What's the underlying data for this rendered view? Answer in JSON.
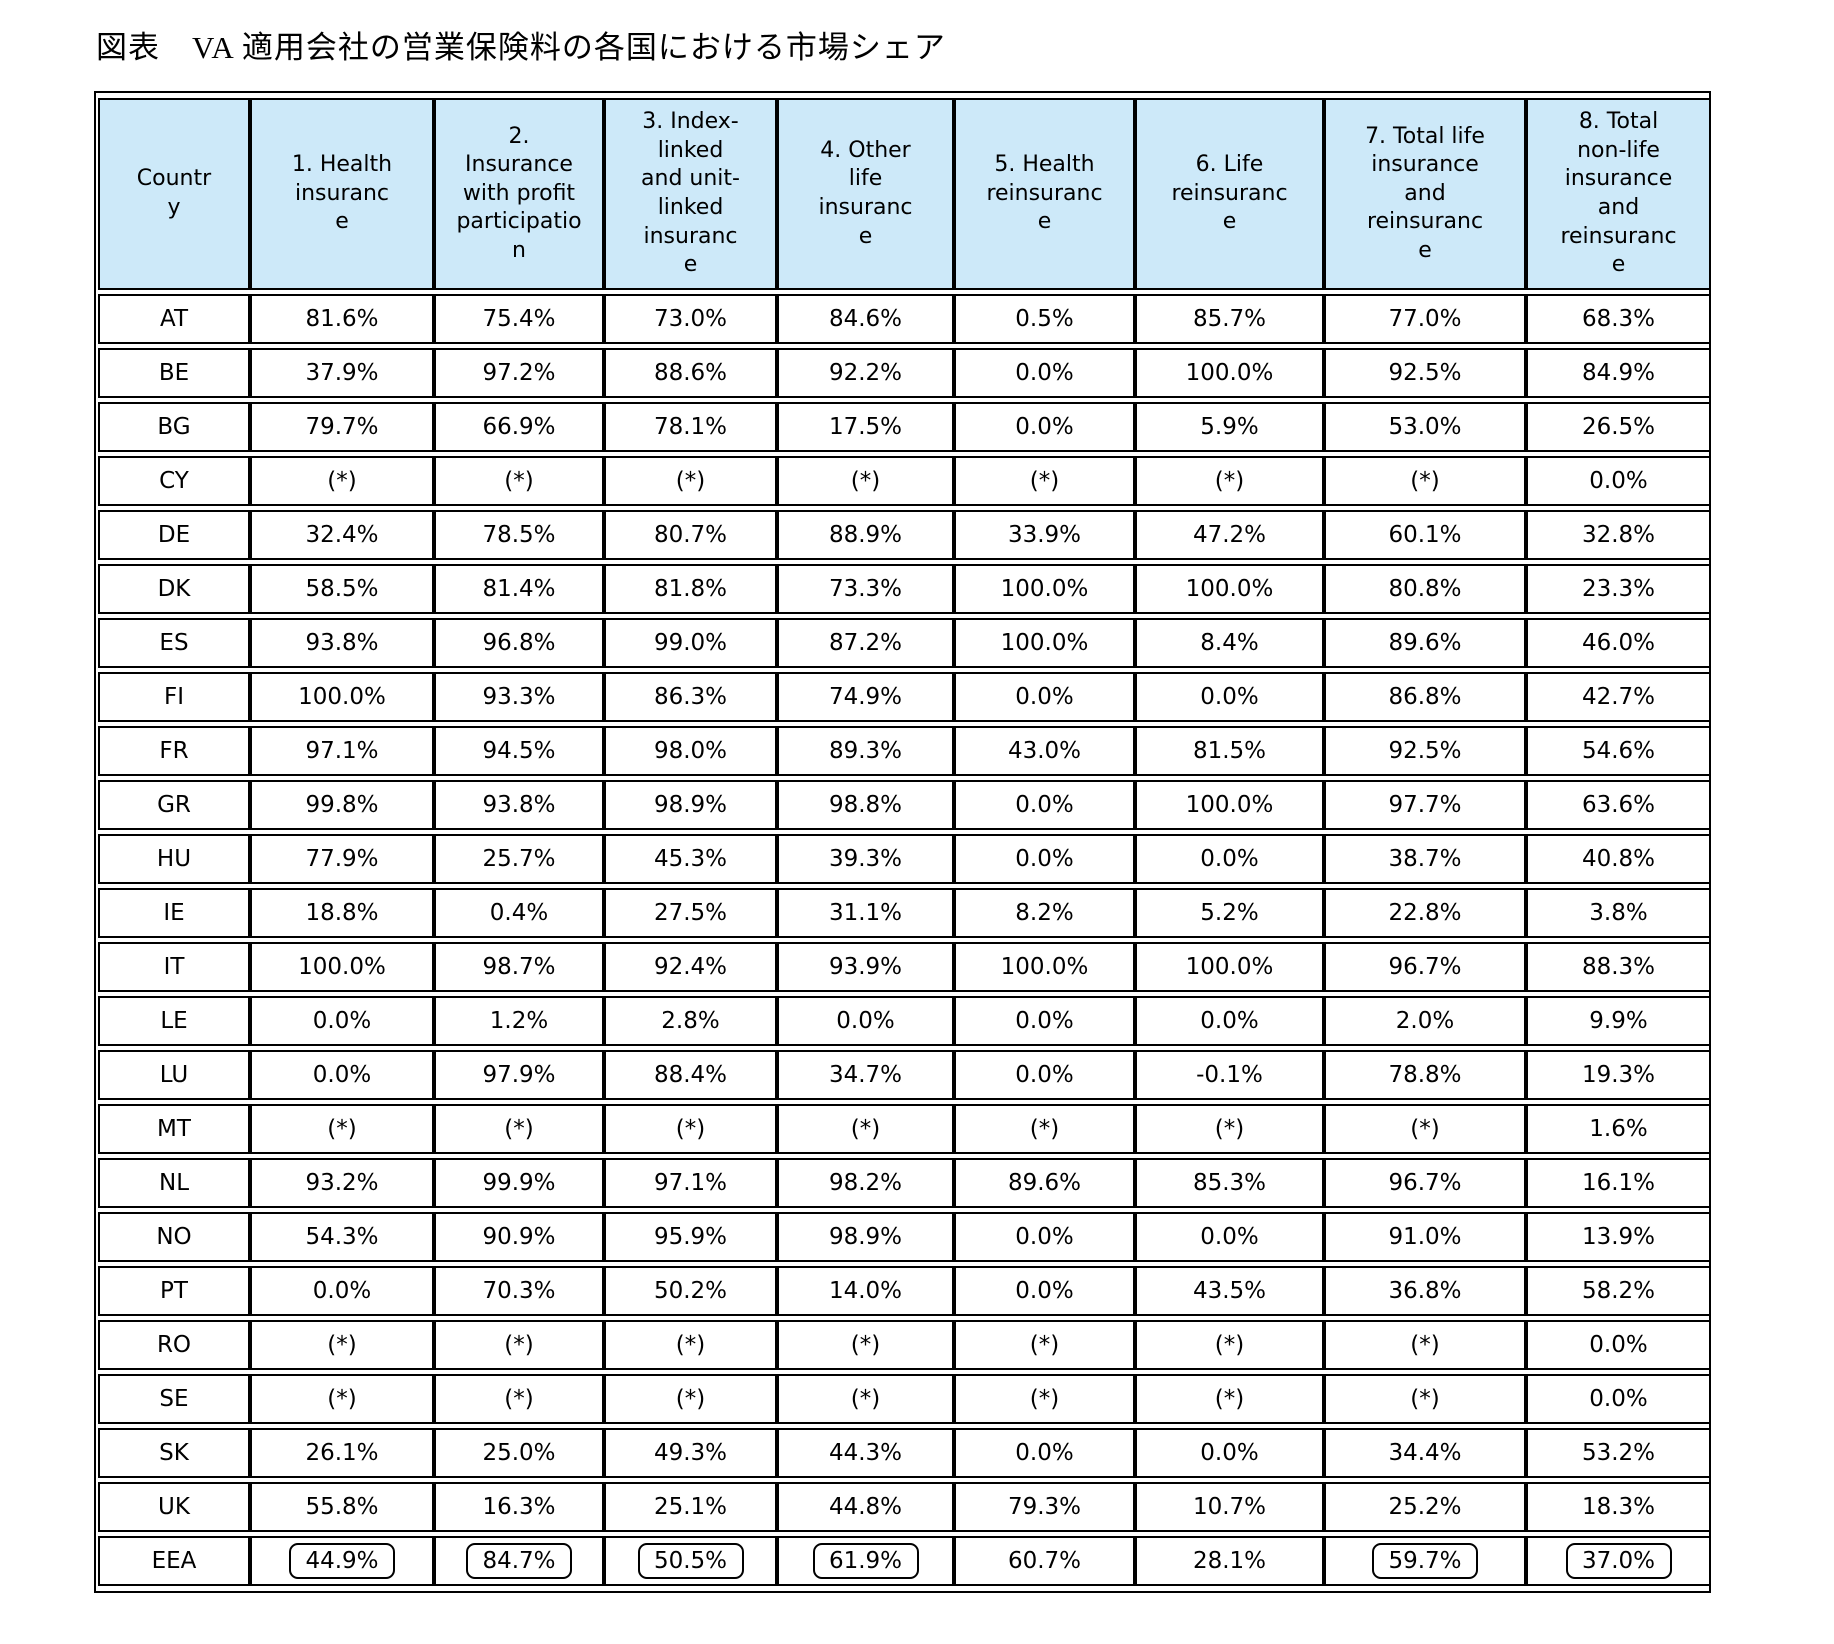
{
  "page_title": "図表　VA 適用会社の営業保険料の各国における市場シェア",
  "header_bg": "#cde9f9",
  "asterisk_value": "(*)",
  "chart_data": {
    "type": "table",
    "title": "図表　VA 適用会社の営業保険料の各国における市場シェア",
    "columns": [
      {
        "label": "Country",
        "display": "Countr\ny"
      },
      {
        "label": "1. Health insurance",
        "display": "1. Health\ninsuranc\ne"
      },
      {
        "label": "2. Insurance with profit participation",
        "display": "2.\nInsurance\nwith profit\nparticipatio\nn"
      },
      {
        "label": "3. Index-linked and unit-linked insurance",
        "display": "3. Index-\nlinked\nand unit-\nlinked\ninsuranc\ne"
      },
      {
        "label": "4. Other life insurance",
        "display": "4. Other\nlife\ninsuranc\ne"
      },
      {
        "label": "5. Health reinsurance",
        "display": "5. Health\nreinsuranc\ne"
      },
      {
        "label": "6. Life reinsurance",
        "display": "6. Life\nreinsuranc\ne"
      },
      {
        "label": "7. Total life insurance and reinsurance",
        "display": "7. Total life\ninsurance\nand\nreinsuranc\ne"
      },
      {
        "label": "8. Total non-life insurance and reinsurance",
        "display": "8. Total\nnon-life\ninsurance\nand\nreinsuranc\ne"
      }
    ],
    "rows": [
      {
        "country": "AT",
        "values": [
          "81.6%",
          "75.4%",
          "73.0%",
          "84.6%",
          "0.5%",
          "85.7%",
          "77.0%",
          "68.3%"
        ]
      },
      {
        "country": "BE",
        "values": [
          "37.9%",
          "97.2%",
          "88.6%",
          "92.2%",
          "0.0%",
          "100.0%",
          "92.5%",
          "84.9%"
        ]
      },
      {
        "country": "BG",
        "values": [
          "79.7%",
          "66.9%",
          "78.1%",
          "17.5%",
          "0.0%",
          "5.9%",
          "53.0%",
          "26.5%"
        ]
      },
      {
        "country": "CY",
        "values": [
          "(*)",
          "(*)",
          "(*)",
          "(*)",
          "(*)",
          "(*)",
          "(*)",
          "0.0%"
        ]
      },
      {
        "country": "DE",
        "values": [
          "32.4%",
          "78.5%",
          "80.7%",
          "88.9%",
          "33.9%",
          "47.2%",
          "60.1%",
          "32.8%"
        ]
      },
      {
        "country": "DK",
        "values": [
          "58.5%",
          "81.4%",
          "81.8%",
          "73.3%",
          "100.0%",
          "100.0%",
          "80.8%",
          "23.3%"
        ]
      },
      {
        "country": "ES",
        "values": [
          "93.8%",
          "96.8%",
          "99.0%",
          "87.2%",
          "100.0%",
          "8.4%",
          "89.6%",
          "46.0%"
        ]
      },
      {
        "country": "FI",
        "values": [
          "100.0%",
          "93.3%",
          "86.3%",
          "74.9%",
          "0.0%",
          "0.0%",
          "86.8%",
          "42.7%"
        ]
      },
      {
        "country": "FR",
        "values": [
          "97.1%",
          "94.5%",
          "98.0%",
          "89.3%",
          "43.0%",
          "81.5%",
          "92.5%",
          "54.6%"
        ]
      },
      {
        "country": "GR",
        "values": [
          "99.8%",
          "93.8%",
          "98.9%",
          "98.8%",
          "0.0%",
          "100.0%",
          "97.7%",
          "63.6%"
        ]
      },
      {
        "country": "HU",
        "values": [
          "77.9%",
          "25.7%",
          "45.3%",
          "39.3%",
          "0.0%",
          "0.0%",
          "38.7%",
          "40.8%"
        ]
      },
      {
        "country": "IE",
        "values": [
          "18.8%",
          "0.4%",
          "27.5%",
          "31.1%",
          "8.2%",
          "5.2%",
          "22.8%",
          "3.8%"
        ]
      },
      {
        "country": "IT",
        "values": [
          "100.0%",
          "98.7%",
          "92.4%",
          "93.9%",
          "100.0%",
          "100.0%",
          "96.7%",
          "88.3%"
        ]
      },
      {
        "country": "LE",
        "values": [
          "0.0%",
          "1.2%",
          "2.8%",
          "0.0%",
          "0.0%",
          "0.0%",
          "2.0%",
          "9.9%"
        ]
      },
      {
        "country": "LU",
        "values": [
          "0.0%",
          "97.9%",
          "88.4%",
          "34.7%",
          "0.0%",
          "-0.1%",
          "78.8%",
          "19.3%"
        ]
      },
      {
        "country": "MT",
        "values": [
          "(*)",
          "(*)",
          "(*)",
          "(*)",
          "(*)",
          "(*)",
          "(*)",
          "1.6%"
        ]
      },
      {
        "country": "NL",
        "values": [
          "93.2%",
          "99.9%",
          "97.1%",
          "98.2%",
          "89.6%",
          "85.3%",
          "96.7%",
          "16.1%"
        ]
      },
      {
        "country": "NO",
        "values": [
          "54.3%",
          "90.9%",
          "95.9%",
          "98.9%",
          "0.0%",
          "0.0%",
          "91.0%",
          "13.9%"
        ]
      },
      {
        "country": "PT",
        "values": [
          "0.0%",
          "70.3%",
          "50.2%",
          "14.0%",
          "0.0%",
          "43.5%",
          "36.8%",
          "58.2%"
        ]
      },
      {
        "country": "RO",
        "values": [
          "(*)",
          "(*)",
          "(*)",
          "(*)",
          "(*)",
          "(*)",
          "(*)",
          "0.0%"
        ]
      },
      {
        "country": "SE",
        "values": [
          "(*)",
          "(*)",
          "(*)",
          "(*)",
          "(*)",
          "(*)",
          "(*)",
          "0.0%"
        ]
      },
      {
        "country": "SK",
        "values": [
          "26.1%",
          "25.0%",
          "49.3%",
          "44.3%",
          "0.0%",
          "0.0%",
          "34.4%",
          "53.2%"
        ]
      },
      {
        "country": "UK",
        "values": [
          "55.8%",
          "16.3%",
          "25.1%",
          "44.8%",
          "79.3%",
          "10.7%",
          "25.2%",
          "18.3%"
        ]
      },
      {
        "country": "EEA",
        "values": [
          "44.9%",
          "84.7%",
          "50.5%",
          "61.9%",
          "60.7%",
          "28.1%",
          "59.7%",
          "37.0%"
        ],
        "boxed": [
          true,
          true,
          true,
          true,
          false,
          false,
          true,
          true
        ]
      }
    ]
  }
}
